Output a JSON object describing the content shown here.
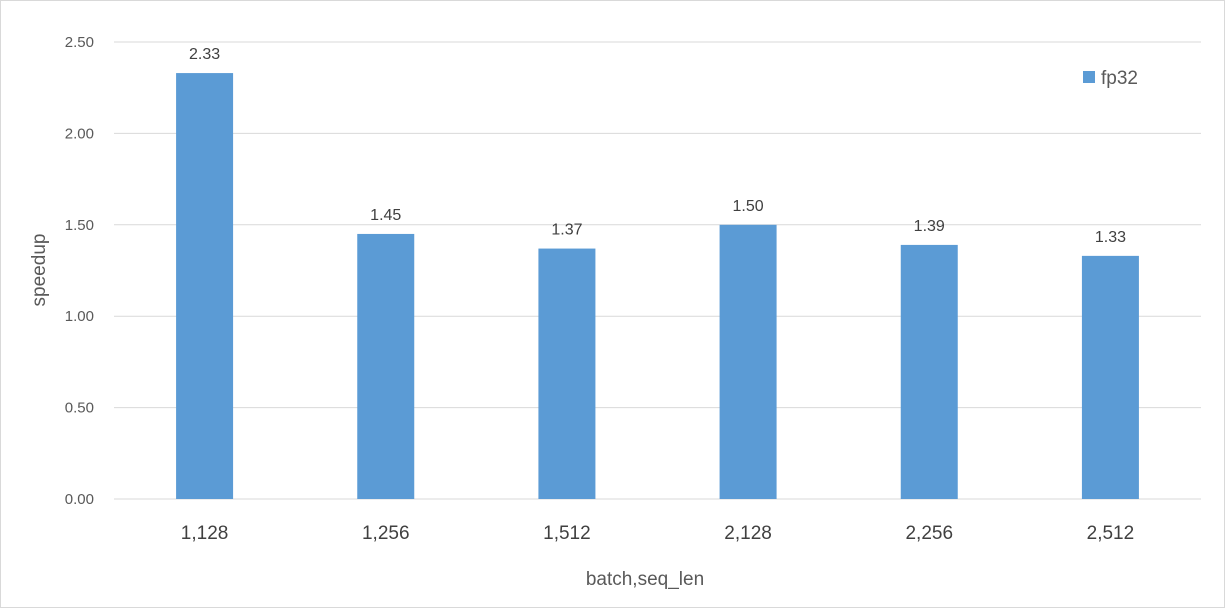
{
  "chart_data": {
    "type": "bar",
    "categories": [
      "1,128",
      "1,256",
      "1,512",
      "2,128",
      "2,256",
      "2,512"
    ],
    "series": [
      {
        "name": "fp32",
        "values": [
          2.33,
          1.45,
          1.37,
          1.5,
          1.39,
          1.33
        ]
      }
    ],
    "data_labels": [
      "2.33",
      "1.45",
      "1.37",
      "1.50",
      "1.39",
      "1.33"
    ],
    "xlabel": "batch,seq_len",
    "ylabel": "speedup",
    "ylim": [
      0,
      2.5
    ],
    "yticks": [
      "0.00",
      "0.50",
      "1.00",
      "1.50",
      "2.00",
      "2.50"
    ],
    "grid": true,
    "legend": "top-right",
    "colors": {
      "bar": "#5b9bd5",
      "grid": "#d9d9d9"
    }
  }
}
